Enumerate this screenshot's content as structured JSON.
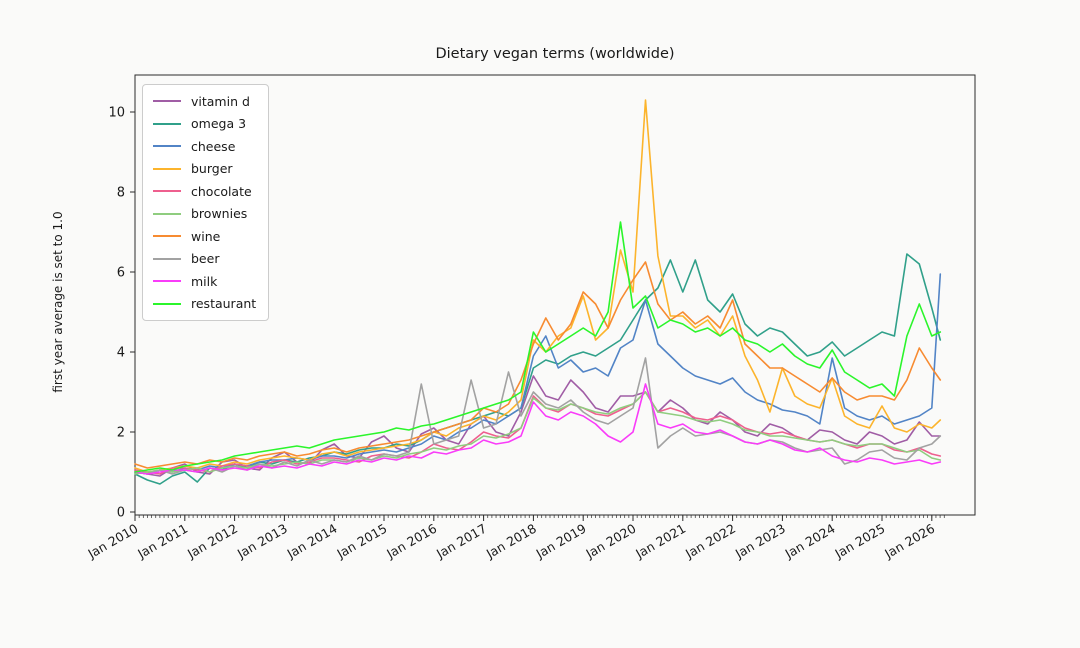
{
  "chart_data": {
    "type": "line",
    "title": "Dietary vegan terms (worldwide)",
    "xlabel": "",
    "ylabel": "first year average is set to 1.0",
    "grid": false,
    "legend_position": "upper left",
    "ylim": [
      0,
      10.9
    ],
    "y_ticks": [
      0,
      2,
      4,
      6,
      8,
      10
    ],
    "x_tick_labels": [
      "Jan 2010",
      "Jan 2011",
      "Jan 2012",
      "Jan 2013",
      "Jan 2014",
      "Jan 2015",
      "Jan 2016",
      "Jan 2017",
      "Jan 2018",
      "Jan 2019",
      "Jan 2020",
      "Jan 2021",
      "Jan 2022",
      "Jan 2023",
      "Jan 2024",
      "Jan 2025",
      "Jan 2026"
    ],
    "x_unit": "decimal_year",
    "x": [
      2010,
      2010.25,
      2010.5,
      2010.75,
      2011,
      2011.25,
      2011.5,
      2011.75,
      2012,
      2012.25,
      2012.5,
      2012.75,
      2013,
      2013.25,
      2013.5,
      2013.75,
      2014,
      2014.25,
      2014.5,
      2014.75,
      2015,
      2015.25,
      2015.5,
      2015.75,
      2016,
      2016.25,
      2016.5,
      2016.75,
      2017,
      2017.25,
      2017.5,
      2017.75,
      2018,
      2018.25,
      2018.5,
      2018.75,
      2019,
      2019.25,
      2019.5,
      2019.75,
      2020,
      2020.25,
      2020.5,
      2020.75,
      2021,
      2021.25,
      2021.5,
      2021.75,
      2022,
      2022.25,
      2022.5,
      2022.75,
      2023,
      2023.25,
      2023.5,
      2023.75,
      2024,
      2024.25,
      2024.5,
      2024.75,
      2025,
      2025.25,
      2025.5,
      2025.75,
      2026,
      2026.17
    ],
    "series": [
      {
        "name": "vitamin d",
        "color": "#a05da5",
        "values": [
          1.0,
          0.95,
          0.9,
          1.1,
          1.2,
          1.0,
          0.95,
          1.25,
          1.3,
          1.1,
          1.05,
          1.35,
          1.5,
          1.25,
          1.2,
          1.55,
          1.7,
          1.4,
          1.35,
          1.75,
          1.9,
          1.6,
          1.5,
          1.95,
          2.1,
          1.8,
          1.7,
          2.2,
          2.4,
          2.0,
          1.9,
          2.5,
          3.4,
          2.9,
          2.8,
          3.3,
          3.0,
          2.6,
          2.5,
          2.9,
          2.9,
          3.0,
          2.5,
          2.8,
          2.6,
          2.3,
          2.2,
          2.5,
          2.3,
          2.0,
          1.9,
          2.2,
          2.1,
          1.9,
          1.8,
          2.05,
          2.0,
          1.8,
          1.7,
          2.0,
          1.9,
          1.7,
          1.8,
          2.25,
          1.9,
          1.9
        ]
      },
      {
        "name": "omega 3",
        "color": "#30a08a",
        "values": [
          0.95,
          0.8,
          0.7,
          0.9,
          1.0,
          0.75,
          1.1,
          1.05,
          1.2,
          1.1,
          1.25,
          1.2,
          1.3,
          1.25,
          1.35,
          1.4,
          1.5,
          1.45,
          1.55,
          1.6,
          1.6,
          1.7,
          1.65,
          1.8,
          2.0,
          2.1,
          2.2,
          2.3,
          2.4,
          2.5,
          2.4,
          2.6,
          3.6,
          3.8,
          3.7,
          3.9,
          4.0,
          3.9,
          4.1,
          4.3,
          4.8,
          5.3,
          5.6,
          6.3,
          5.5,
          6.3,
          5.3,
          5.0,
          5.45,
          4.7,
          4.4,
          4.6,
          4.5,
          4.2,
          3.9,
          4.0,
          4.25,
          3.9,
          4.1,
          4.3,
          4.5,
          4.4,
          6.45,
          6.2,
          5.1,
          4.3
        ]
      },
      {
        "name": "cheese",
        "color": "#5284c6",
        "values": [
          1.0,
          0.95,
          1.05,
          1.0,
          1.1,
          1.05,
          1.15,
          1.1,
          1.2,
          1.15,
          1.25,
          1.3,
          1.3,
          1.35,
          1.3,
          1.4,
          1.4,
          1.35,
          1.45,
          1.5,
          1.55,
          1.5,
          1.6,
          1.7,
          1.9,
          1.8,
          2.0,
          2.1,
          2.3,
          2.2,
          2.4,
          2.6,
          3.9,
          4.4,
          3.6,
          3.8,
          3.5,
          3.6,
          3.4,
          4.1,
          4.3,
          5.3,
          4.2,
          3.9,
          3.6,
          3.4,
          3.3,
          3.2,
          3.35,
          3.0,
          2.8,
          2.7,
          2.55,
          2.5,
          2.4,
          2.2,
          3.85,
          2.6,
          2.4,
          2.3,
          2.4,
          2.2,
          2.3,
          2.4,
          2.6,
          5.95
        ]
      },
      {
        "name": "burger",
        "color": "#fcb42c",
        "values": [
          1.1,
          1.0,
          1.05,
          1.1,
          1.15,
          1.1,
          1.2,
          1.15,
          1.25,
          1.2,
          1.3,
          1.35,
          1.4,
          1.35,
          1.3,
          1.45,
          1.5,
          1.4,
          1.5,
          1.55,
          1.6,
          1.65,
          1.7,
          1.8,
          2.0,
          1.9,
          2.1,
          2.2,
          2.4,
          2.3,
          2.5,
          2.8,
          4.3,
          4.0,
          4.4,
          4.6,
          5.4,
          4.3,
          4.6,
          6.55,
          5.5,
          10.3,
          6.4,
          4.9,
          4.9,
          4.6,
          4.8,
          4.4,
          4.9,
          3.9,
          3.3,
          2.5,
          3.6,
          2.9,
          2.7,
          2.6,
          3.35,
          2.4,
          2.2,
          2.1,
          2.65,
          2.1,
          2.0,
          2.2,
          2.1,
          2.3
        ]
      },
      {
        "name": "chocolate",
        "color": "#ee5f8e",
        "values": [
          1.05,
          1.0,
          0.95,
          1.1,
          1.1,
          1.05,
          1.0,
          1.15,
          1.2,
          1.15,
          1.1,
          1.25,
          1.3,
          1.2,
          1.25,
          1.35,
          1.35,
          1.3,
          1.25,
          1.4,
          1.45,
          1.4,
          1.35,
          1.5,
          1.7,
          1.6,
          1.55,
          1.75,
          2.0,
          1.9,
          1.85,
          2.1,
          2.9,
          2.6,
          2.5,
          2.7,
          2.6,
          2.45,
          2.4,
          2.55,
          2.7,
          3.0,
          2.5,
          2.6,
          2.5,
          2.35,
          2.3,
          2.4,
          2.3,
          2.1,
          2.0,
          1.95,
          2.0,
          1.9,
          1.8,
          1.75,
          1.8,
          1.7,
          1.6,
          1.7,
          1.7,
          1.55,
          1.5,
          1.6,
          1.45,
          1.4
        ]
      },
      {
        "name": "brownies",
        "color": "#8fcd7f",
        "values": [
          0.95,
          1.0,
          1.05,
          1.0,
          1.05,
          1.1,
          1.0,
          1.1,
          1.15,
          1.1,
          1.2,
          1.15,
          1.2,
          1.25,
          1.2,
          1.3,
          1.3,
          1.25,
          1.35,
          1.3,
          1.4,
          1.35,
          1.45,
          1.5,
          1.6,
          1.55,
          1.65,
          1.7,
          1.9,
          1.85,
          1.95,
          2.1,
          2.85,
          2.6,
          2.55,
          2.7,
          2.6,
          2.5,
          2.45,
          2.6,
          2.7,
          3.0,
          2.5,
          2.45,
          2.4,
          2.3,
          2.25,
          2.3,
          2.2,
          2.05,
          2.0,
          1.9,
          1.9,
          1.85,
          1.8,
          1.75,
          1.8,
          1.7,
          1.65,
          1.7,
          1.7,
          1.6,
          1.5,
          1.55,
          1.35,
          1.3
        ]
      },
      {
        "name": "wine",
        "color": "#f78b31",
        "values": [
          1.2,
          1.1,
          1.15,
          1.2,
          1.25,
          1.2,
          1.3,
          1.25,
          1.35,
          1.3,
          1.4,
          1.45,
          1.5,
          1.4,
          1.45,
          1.55,
          1.6,
          1.5,
          1.6,
          1.65,
          1.7,
          1.75,
          1.8,
          1.9,
          2.0,
          2.1,
          2.2,
          2.3,
          2.6,
          2.5,
          2.7,
          3.3,
          4.2,
          4.85,
          4.3,
          4.7,
          5.5,
          5.2,
          4.6,
          5.3,
          5.8,
          6.25,
          5.2,
          4.8,
          5.0,
          4.7,
          4.9,
          4.6,
          5.3,
          4.2,
          3.9,
          3.6,
          3.6,
          3.4,
          3.2,
          3.0,
          3.35,
          3.0,
          2.8,
          2.9,
          2.9,
          2.8,
          3.3,
          4.1,
          3.6,
          3.3
        ]
      },
      {
        "name": "beer",
        "color": "#a2a2a2",
        "values": [
          1.0,
          0.95,
          1.05,
          0.95,
          1.05,
          1.0,
          1.1,
          1.0,
          1.15,
          1.05,
          1.2,
          1.1,
          1.25,
          1.15,
          1.3,
          1.2,
          1.3,
          1.25,
          1.4,
          1.3,
          1.45,
          1.4,
          1.5,
          3.2,
          1.7,
          1.8,
          1.9,
          3.3,
          2.1,
          2.2,
          3.5,
          2.4,
          3.0,
          2.7,
          2.6,
          2.8,
          2.5,
          2.3,
          2.2,
          2.4,
          2.6,
          3.85,
          1.6,
          1.9,
          2.1,
          1.9,
          1.95,
          2.0,
          1.9,
          1.75,
          1.7,
          1.8,
          1.75,
          1.6,
          1.5,
          1.55,
          1.6,
          1.2,
          1.3,
          1.5,
          1.55,
          1.35,
          1.3,
          1.6,
          1.7,
          1.9
        ]
      },
      {
        "name": "milk",
        "color": "#f93cf9",
        "values": [
          1.0,
          0.95,
          1.0,
          1.05,
          1.05,
          1.0,
          1.1,
          1.05,
          1.1,
          1.05,
          1.15,
          1.1,
          1.15,
          1.1,
          1.2,
          1.15,
          1.25,
          1.2,
          1.3,
          1.25,
          1.35,
          1.3,
          1.4,
          1.35,
          1.5,
          1.45,
          1.55,
          1.6,
          1.8,
          1.7,
          1.75,
          1.9,
          2.75,
          2.4,
          2.3,
          2.5,
          2.4,
          2.2,
          1.9,
          1.75,
          2.0,
          3.2,
          2.2,
          2.1,
          2.2,
          2.0,
          1.95,
          2.05,
          1.9,
          1.75,
          1.7,
          1.8,
          1.7,
          1.55,
          1.5,
          1.6,
          1.4,
          1.3,
          1.25,
          1.35,
          1.3,
          1.2,
          1.25,
          1.3,
          1.2,
          1.25
        ]
      },
      {
        "name": "restaurant",
        "color": "#2bf52b",
        "values": [
          1.0,
          1.05,
          1.1,
          1.05,
          1.15,
          1.2,
          1.25,
          1.3,
          1.4,
          1.45,
          1.5,
          1.55,
          1.6,
          1.65,
          1.6,
          1.7,
          1.8,
          1.85,
          1.9,
          1.95,
          2.0,
          2.1,
          2.05,
          2.15,
          2.2,
          2.3,
          2.4,
          2.5,
          2.6,
          2.7,
          2.8,
          3.0,
          4.5,
          4.0,
          4.2,
          4.4,
          4.6,
          4.4,
          5.0,
          7.25,
          5.1,
          5.4,
          4.6,
          4.8,
          4.7,
          4.5,
          4.6,
          4.4,
          4.6,
          4.3,
          4.2,
          4.0,
          4.2,
          3.9,
          3.7,
          3.6,
          4.05,
          3.5,
          3.3,
          3.1,
          3.2,
          2.9,
          4.4,
          5.2,
          4.4,
          4.5
        ]
      }
    ]
  }
}
